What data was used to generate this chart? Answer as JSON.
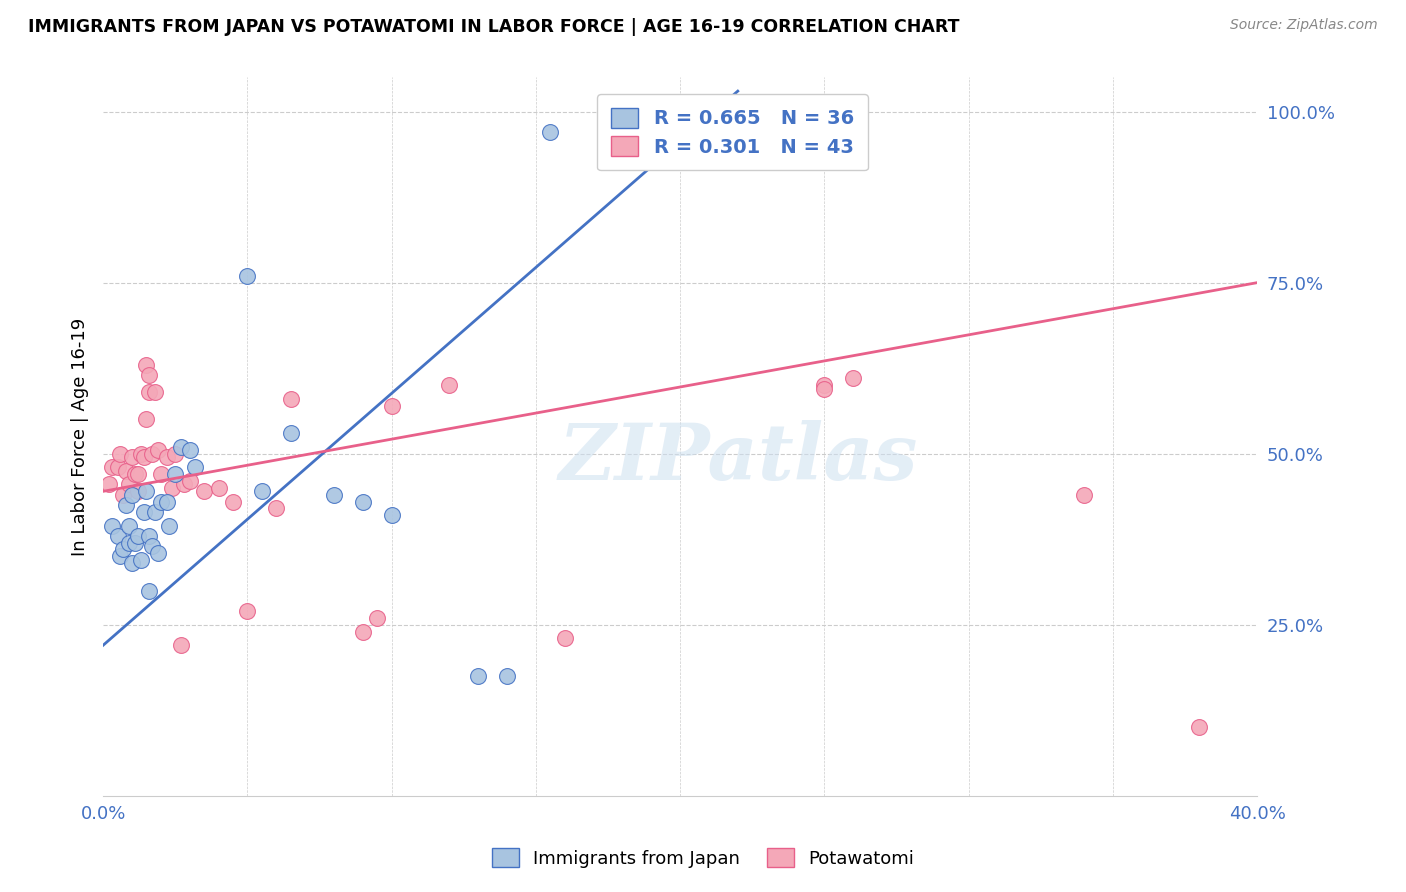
{
  "title": "IMMIGRANTS FROM JAPAN VS POTAWATOMI IN LABOR FORCE | AGE 16-19 CORRELATION CHART",
  "source": "Source: ZipAtlas.com",
  "ylabel": "In Labor Force | Age 16-19",
  "xlim": [
    0.0,
    0.4
  ],
  "ylim": [
    0.0,
    1.05
  ],
  "xticks": [
    0.0,
    0.05,
    0.1,
    0.15,
    0.2,
    0.25,
    0.3,
    0.35,
    0.4
  ],
  "ytick_positions": [
    0.25,
    0.5,
    0.75,
    1.0
  ],
  "ytick_labels": [
    "25.0%",
    "50.0%",
    "75.0%",
    "100.0%"
  ],
  "legend1_r": "0.665",
  "legend1_n": "36",
  "legend2_r": "0.301",
  "legend2_n": "43",
  "blue_color": "#a8c4e0",
  "pink_color": "#f4a8b8",
  "blue_line_color": "#4472c4",
  "pink_line_color": "#e8608a",
  "watermark": "ZIPatlas",
  "blue_line_x0": 0.0,
  "blue_line_y0": 0.22,
  "blue_line_x1": 0.22,
  "blue_line_y1": 1.03,
  "pink_line_x0": 0.0,
  "pink_line_y0": 0.445,
  "pink_line_x1": 0.4,
  "pink_line_y1": 0.75,
  "blue_dots_x": [
    0.003,
    0.005,
    0.006,
    0.007,
    0.008,
    0.009,
    0.009,
    0.01,
    0.01,
    0.011,
    0.012,
    0.013,
    0.014,
    0.015,
    0.016,
    0.016,
    0.017,
    0.018,
    0.019,
    0.02,
    0.022,
    0.023,
    0.025,
    0.027,
    0.03,
    0.032,
    0.05,
    0.055,
    0.065,
    0.08,
    0.09,
    0.1,
    0.13,
    0.14,
    0.155,
    0.215
  ],
  "blue_dots_y": [
    0.395,
    0.38,
    0.35,
    0.36,
    0.425,
    0.395,
    0.37,
    0.44,
    0.34,
    0.37,
    0.38,
    0.345,
    0.415,
    0.445,
    0.38,
    0.3,
    0.365,
    0.415,
    0.355,
    0.43,
    0.43,
    0.395,
    0.47,
    0.51,
    0.505,
    0.48,
    0.76,
    0.445,
    0.53,
    0.44,
    0.43,
    0.41,
    0.175,
    0.175,
    0.97,
    0.985
  ],
  "pink_dots_x": [
    0.002,
    0.003,
    0.005,
    0.006,
    0.007,
    0.008,
    0.009,
    0.01,
    0.011,
    0.012,
    0.012,
    0.013,
    0.014,
    0.015,
    0.015,
    0.016,
    0.016,
    0.017,
    0.018,
    0.019,
    0.02,
    0.022,
    0.024,
    0.025,
    0.027,
    0.028,
    0.03,
    0.035,
    0.04,
    0.045,
    0.05,
    0.06,
    0.065,
    0.09,
    0.095,
    0.1,
    0.12,
    0.16,
    0.25,
    0.25,
    0.26,
    0.34,
    0.38
  ],
  "pink_dots_y": [
    0.455,
    0.48,
    0.48,
    0.5,
    0.44,
    0.475,
    0.455,
    0.495,
    0.47,
    0.445,
    0.47,
    0.5,
    0.495,
    0.55,
    0.63,
    0.59,
    0.615,
    0.5,
    0.59,
    0.505,
    0.47,
    0.495,
    0.45,
    0.5,
    0.22,
    0.455,
    0.46,
    0.445,
    0.45,
    0.43,
    0.27,
    0.42,
    0.58,
    0.24,
    0.26,
    0.57,
    0.6,
    0.23,
    0.6,
    0.595,
    0.61,
    0.44,
    0.1
  ]
}
